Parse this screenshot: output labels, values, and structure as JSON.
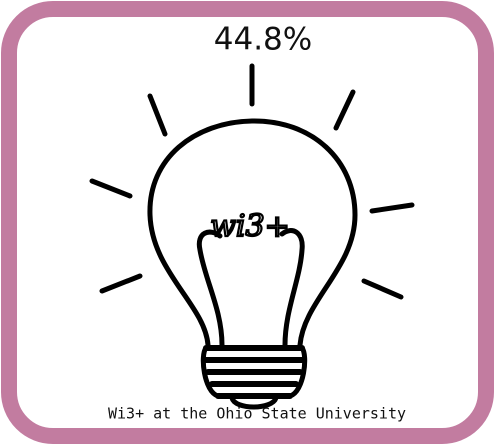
{
  "header": {
    "title": "44.8%"
  },
  "illustration": {
    "filament_text": "wi3+"
  },
  "footer": {
    "caption": "Wi3+ at the Ohio State University"
  }
}
